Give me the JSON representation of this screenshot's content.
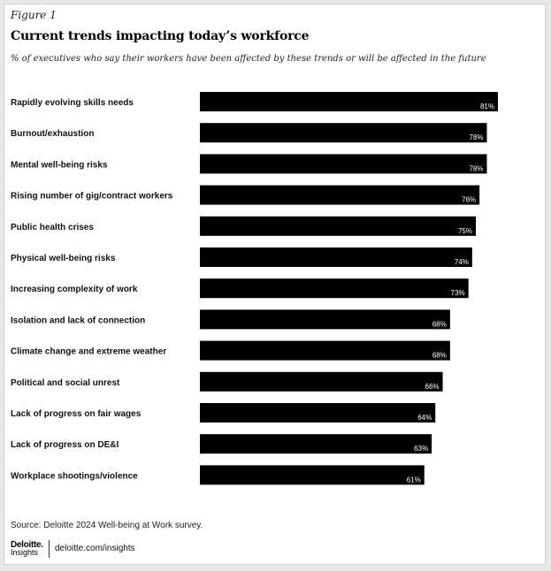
{
  "figure_label": "Figure 1",
  "footer": {
    "source": "Source: Deloitte 2024 Well-being at Work survey.",
    "logo_brand": "Deloitte.",
    "logo_sub": "Insights",
    "url": "deloitte.com/insights"
  },
  "chart_data": {
    "type": "bar",
    "orientation": "horizontal",
    "title": "Current trends impacting today’s workforce",
    "subtitle": "% of executives who say their workers have been affected by these trends or will be affected in the future",
    "categories": [
      "Rapidly evolving skills needs",
      "Burnout/exhaustion",
      "Mental well-being risks",
      "Rising number of gig/contract workers",
      "Public health crises",
      "Physical well-being risks",
      "Increasing complexity of work",
      "Isolation and lack of connection",
      "Climate change and extreme weather",
      "Political and social unrest",
      "Lack of progress on fair wages",
      "Lack of progress on DE&I",
      "Workplace shootings/violence"
    ],
    "values": [
      81,
      78,
      78,
      76,
      75,
      74,
      73,
      68,
      68,
      66,
      64,
      63,
      61
    ],
    "value_labels": [
      "81%",
      "78%",
      "78%",
      "76%",
      "75%",
      "74%",
      "73%",
      "68%",
      "68%",
      "66%",
      "64%",
      "63%",
      "61%"
    ],
    "bar_color": "#000000",
    "grid": false,
    "legend": "none"
  }
}
